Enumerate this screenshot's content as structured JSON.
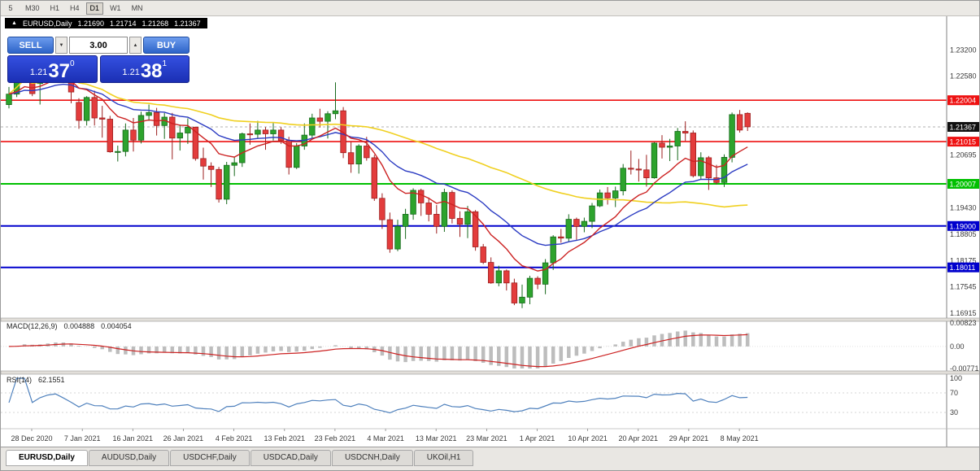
{
  "toolbar": {
    "timeframes": [
      "5",
      "M30",
      "H1",
      "H4",
      "D1",
      "W1",
      "MN"
    ]
  },
  "header": {
    "expand_icon": "▲",
    "symbol": "EURUSD,Daily",
    "open": "1.21690",
    "high": "1.21714",
    "low": "1.21268",
    "close": "1.21367"
  },
  "trade_panel": {
    "sell_label": "SELL",
    "buy_label": "BUY",
    "lot_size": "3.00",
    "decrease_icon": "▼",
    "increase_icon": "▲",
    "sell_price": {
      "big_figure": "1.21",
      "pips": "37",
      "pipette": "0"
    },
    "buy_price": {
      "big_figure": "1.21",
      "pips": "38",
      "pipette": "1"
    }
  },
  "chart_data": {
    "type": "candlestick",
    "symbol": "EURUSD",
    "timeframe": "Daily",
    "x_labels": [
      "28 Dec 2020",
      "7 Jan 2021",
      "16 Jan 2021",
      "26 Jan 2021",
      "4 Feb 2021",
      "13 Feb 2021",
      "23 Feb 2021",
      "4 Mar 2021",
      "13 Mar 2021",
      "23 Mar 2021",
      "1 Apr 2021",
      "10 Apr 2021",
      "20 Apr 2021",
      "29 Apr 2021",
      "8 May 2021"
    ],
    "price_axis": {
      "min": 1.1682,
      "max": 1.2395,
      "grid_labels": [
        "1.23200",
        "1.22580",
        "1.20695",
        "1.19430",
        "1.18805",
        "1.18175",
        "1.17545",
        "1.16915"
      ]
    },
    "current_price": {
      "value": 1.21367,
      "label": "1.21367"
    },
    "hlines": [
      {
        "price": 1.22004,
        "label": "1.22004",
        "color": "#ee1111",
        "thickness": 1.6
      },
      {
        "price": 1.21015,
        "label": "1.21015",
        "color": "#ee1111",
        "thickness": 1.6
      },
      {
        "price": 1.20007,
        "label": "1.20007",
        "color": "#00c000",
        "thickness": 2
      },
      {
        "price": 1.19,
        "label": "1.19000",
        "color": "#0000cd",
        "thickness": 2
      },
      {
        "price": 1.18011,
        "label": "1.18011",
        "color": "#0000cd",
        "thickness": 2
      }
    ],
    "colors": {
      "up": "#2da32d",
      "up_edge": "#17691c",
      "down": "#e33c3c",
      "down_edge": "#9c1f1f"
    },
    "moving_averages": [
      {
        "name": "slow-ma",
        "type": "sma",
        "period": 50,
        "color": "#f0d020",
        "width": 1.6
      },
      {
        "name": "mid-ma",
        "type": "ema",
        "period": 21,
        "color": "#2b3bc2",
        "width": 1.4
      },
      {
        "name": "fast-ma",
        "type": "ema",
        "period": 10,
        "color": "#cc2222",
        "width": 1.4
      }
    ],
    "candles": [
      [
        1.219,
        1.2232,
        1.2181,
        1.2215
      ],
      [
        1.2215,
        1.2268,
        1.2208,
        1.2248
      ],
      [
        1.2248,
        1.2295,
        1.2245,
        1.2285
      ],
      [
        1.2285,
        1.2296,
        1.221,
        1.2216
      ],
      [
        1.224,
        1.2262,
        1.219,
        1.225
      ],
      [
        1.225,
        1.2285,
        1.2245,
        1.2278
      ],
      [
        1.2278,
        1.23,
        1.2252,
        1.2292
      ],
      [
        1.2292,
        1.2298,
        1.225,
        1.2262
      ],
      [
        1.2262,
        1.2278,
        1.2193,
        1.222
      ],
      [
        1.2195,
        1.2205,
        1.2132,
        1.2152
      ],
      [
        1.2152,
        1.221,
        1.214,
        1.2207
      ],
      [
        1.2207,
        1.2223,
        1.214,
        1.2158
      ],
      [
        1.2158,
        1.2187,
        1.2111,
        1.2155
      ],
      [
        1.2155,
        1.2163,
        1.2075,
        1.2077
      ],
      [
        1.2077,
        1.2092,
        1.2054,
        1.2078
      ],
      [
        1.2078,
        1.2145,
        1.2066,
        1.2129
      ],
      [
        1.2129,
        1.2158,
        1.2078,
        1.2105
      ],
      [
        1.2105,
        1.2173,
        1.2097,
        1.2164
      ],
      [
        1.2164,
        1.219,
        1.2151,
        1.2171
      ],
      [
        1.2171,
        1.2182,
        1.2116,
        1.214
      ],
      [
        1.214,
        1.217,
        1.2108,
        1.216
      ],
      [
        1.216,
        1.217,
        1.2059,
        1.211
      ],
      [
        1.211,
        1.2142,
        1.208,
        1.2122
      ],
      [
        1.2122,
        1.2157,
        1.2096,
        1.2136
      ],
      [
        1.2136,
        1.2137,
        1.2056,
        1.2061
      ],
      [
        1.2061,
        1.2087,
        1.2011,
        1.2043
      ],
      [
        1.2043,
        1.2052,
        1.1993,
        1.2035
      ],
      [
        1.2035,
        1.2041,
        1.1956,
        1.1964
      ],
      [
        1.1964,
        1.2053,
        1.1952,
        1.2045
      ],
      [
        1.2045,
        1.2065,
        1.2019,
        1.2051
      ],
      [
        1.2051,
        1.2123,
        1.2041,
        1.212
      ],
      [
        1.212,
        1.2145,
        1.2094,
        1.2119
      ],
      [
        1.2119,
        1.2151,
        1.211,
        1.2129
      ],
      [
        1.2129,
        1.2136,
        1.2082,
        1.212
      ],
      [
        1.212,
        1.2146,
        1.2104,
        1.2129
      ],
      [
        1.2129,
        1.2136,
        1.2096,
        1.2104
      ],
      [
        1.2104,
        1.2113,
        1.2023,
        1.204
      ],
      [
        1.204,
        1.2098,
        1.2036,
        1.2091
      ],
      [
        1.2091,
        1.2145,
        1.2082,
        1.2117
      ],
      [
        1.2117,
        1.2168,
        1.2107,
        1.2158
      ],
      [
        1.2158,
        1.218,
        1.2135,
        1.215
      ],
      [
        1.215,
        1.2174,
        1.2109,
        1.2168
      ],
      [
        1.2168,
        1.2243,
        1.2155,
        1.2175
      ],
      [
        1.2175,
        1.2184,
        1.2062,
        1.2075
      ],
      [
        1.2075,
        1.2101,
        1.2027,
        1.2048
      ],
      [
        1.2048,
        1.2095,
        1.2025,
        1.2091
      ],
      [
        1.2091,
        1.2113,
        1.2056,
        1.2063
      ],
      [
        1.2063,
        1.207,
        1.196,
        1.1966
      ],
      [
        1.1966,
        1.1978,
        1.1893,
        1.1915
      ],
      [
        1.1915,
        1.1932,
        1.1836,
        1.1845
      ],
      [
        1.1845,
        1.1915,
        1.184,
        1.1899
      ],
      [
        1.1899,
        1.1941,
        1.1869,
        1.1928
      ],
      [
        1.1928,
        1.199,
        1.1915,
        1.1985
      ],
      [
        1.1985,
        1.1989,
        1.1924,
        1.1955
      ],
      [
        1.1955,
        1.1968,
        1.1911,
        1.1928
      ],
      [
        1.1928,
        1.195,
        1.1882,
        1.1899
      ],
      [
        1.1899,
        1.1989,
        1.1886,
        1.198
      ],
      [
        1.198,
        1.1985,
        1.1906,
        1.1918
      ],
      [
        1.1918,
        1.1935,
        1.1874,
        1.1904
      ],
      [
        1.1904,
        1.1948,
        1.1871,
        1.1934
      ],
      [
        1.1934,
        1.1938,
        1.1841,
        1.185
      ],
      [
        1.185,
        1.1857,
        1.1809,
        1.1813
      ],
      [
        1.1813,
        1.1825,
        1.1762,
        1.1764
      ],
      [
        1.1764,
        1.1805,
        1.1756,
        1.1793
      ],
      [
        1.1793,
        1.1796,
        1.1746,
        1.1764
      ],
      [
        1.1764,
        1.1774,
        1.1711,
        1.1716
      ],
      [
        1.1716,
        1.176,
        1.1704,
        1.173
      ],
      [
        1.173,
        1.1781,
        1.1713,
        1.1775
      ],
      [
        1.1775,
        1.178,
        1.1749,
        1.1761
      ],
      [
        1.1761,
        1.1821,
        1.1737,
        1.1812
      ],
      [
        1.1812,
        1.1878,
        1.1795,
        1.1874
      ],
      [
        1.1874,
        1.1893,
        1.186,
        1.1871
      ],
      [
        1.1871,
        1.1928,
        1.1861,
        1.1916
      ],
      [
        1.1916,
        1.192,
        1.1867,
        1.1899
      ],
      [
        1.1899,
        1.192,
        1.1885,
        1.1911
      ],
      [
        1.1911,
        1.1955,
        1.1895,
        1.1948
      ],
      [
        1.1948,
        1.1987,
        1.1945,
        1.1979
      ],
      [
        1.1979,
        1.1993,
        1.1951,
        1.1967
      ],
      [
        1.1967,
        1.1994,
        1.1945,
        1.1984
      ],
      [
        1.1984,
        1.2048,
        1.1973,
        1.2038
      ],
      [
        1.2038,
        1.208,
        1.2023,
        1.2036
      ],
      [
        1.2036,
        1.206,
        1.2006,
        1.2034
      ],
      [
        1.2034,
        1.207,
        1.1994,
        1.2015
      ],
      [
        1.2015,
        1.21,
        1.2013,
        1.2098
      ],
      [
        1.2098,
        1.2117,
        1.2061,
        1.2088
      ],
      [
        1.2088,
        1.2108,
        1.2055,
        1.2091
      ],
      [
        1.2091,
        1.2134,
        1.2057,
        1.2126
      ],
      [
        1.2126,
        1.215,
        1.2103,
        1.2122
      ],
      [
        1.2122,
        1.2128,
        1.2016,
        1.202
      ],
      [
        1.202,
        1.2076,
        1.2012,
        1.2063
      ],
      [
        1.2063,
        1.2067,
        1.1986,
        1.2015
      ],
      [
        1.2015,
        1.2046,
        1.1999,
        1.2004
      ],
      [
        1.2004,
        1.2071,
        1.1993,
        1.2064
      ],
      [
        1.2064,
        1.2171,
        1.2052,
        1.2166
      ],
      [
        1.2166,
        1.2177,
        1.2123,
        1.2129
      ],
      [
        1.2169,
        1.21714,
        1.21268,
        1.21367
      ]
    ],
    "indicators": {
      "macd": {
        "label": "MACD(12,26,9)",
        "value_main": "0.004888",
        "value_signal": "0.004054",
        "scale": [
          "0.00823",
          "0.00",
          "-0.00771"
        ],
        "range": [
          -0.00771,
          0.00823
        ],
        "histogram_color": "#bdbdbd",
        "signal_color": "#cc2222"
      },
      "rsi": {
        "label": "RSI(14)",
        "value": "62.1551",
        "scale": [
          "100",
          "70",
          "30"
        ],
        "levels": [
          70,
          30
        ],
        "color": "#4f81bd"
      }
    }
  },
  "tabs": [
    "EURUSD,Daily",
    "AUDUSD,Daily",
    "USDCHF,Daily",
    "USDCAD,Daily",
    "USDCNH,Daily",
    "UKOil,H1"
  ]
}
